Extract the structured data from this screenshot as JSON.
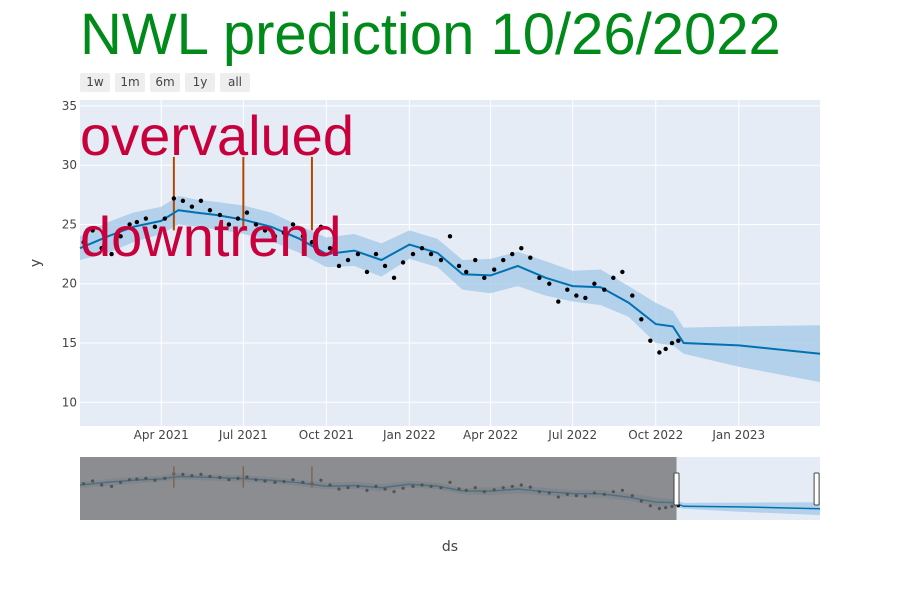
{
  "title": "NWL prediction 10/26/2022",
  "colors": {
    "title": "#008a1a",
    "annotation": "#c8003c",
    "forecast": "#0072b2",
    "band": "#a8cbe8",
    "actual": "#000000",
    "changepoint": "#b34700",
    "plot_bg": "#e5ecf6"
  },
  "range_selector": [
    {
      "label": "1w"
    },
    {
      "label": "1m"
    },
    {
      "label": "6m"
    },
    {
      "label": "1y"
    },
    {
      "label": "all"
    }
  ],
  "annotations": [
    "overvalued",
    "downtrend"
  ],
  "chart_data": {
    "type": "line",
    "xlabel": "ds",
    "ylabel": "y",
    "xlim": [
      "2021-01-01",
      "2023-04-01"
    ],
    "ylim": [
      8,
      35.5
    ],
    "x_ticks": [
      "Apr 2021",
      "Jul 2021",
      "Oct 2021",
      "Jan 2022",
      "Apr 2022",
      "Jul 2022",
      "Oct 2022",
      "Jan 2023"
    ],
    "x_tick_dates": [
      "2021-04-01",
      "2021-07-01",
      "2021-10-01",
      "2022-01-01",
      "2022-04-01",
      "2022-07-01",
      "2022-10-01",
      "2023-01-01"
    ],
    "y_ticks": [
      10,
      15,
      20,
      25,
      30,
      35
    ],
    "grid": true,
    "series": [
      {
        "kind": "forecast",
        "x": [
          "2021-01-01",
          "2021-02-01",
          "2021-03-01",
          "2021-04-01",
          "2021-04-20",
          "2021-05-10",
          "2021-06-01",
          "2021-07-01",
          "2021-08-01",
          "2021-09-01",
          "2021-10-01",
          "2021-11-01",
          "2021-12-01",
          "2022-01-01",
          "2022-02-01",
          "2022-03-01",
          "2022-04-01",
          "2022-05-01",
          "2022-06-01",
          "2022-07-01",
          "2022-08-01",
          "2022-09-01",
          "2022-10-01",
          "2022-10-20",
          "2022-11-01",
          "2023-01-01",
          "2023-04-01"
        ],
        "y": [
          23.0,
          24.0,
          24.8,
          25.3,
          26.2,
          26.0,
          25.8,
          25.4,
          24.8,
          23.8,
          22.5,
          22.8,
          22.0,
          23.3,
          22.6,
          20.8,
          20.7,
          21.5,
          20.5,
          19.8,
          19.7,
          18.4,
          16.6,
          16.4,
          15.0,
          14.8,
          14.1
        ],
        "lower": [
          22.0,
          22.6,
          23.5,
          24.2,
          25.0,
          24.8,
          24.6,
          24.2,
          23.6,
          22.6,
          21.4,
          21.5,
          20.6,
          22.1,
          21.4,
          19.5,
          19.2,
          19.8,
          19.0,
          18.5,
          18.2,
          17.2,
          15.0,
          14.8,
          14.1,
          13.0,
          11.7
        ],
        "upper": [
          24.0,
          25.2,
          26.0,
          26.5,
          27.4,
          27.1,
          26.9,
          26.6,
          26.0,
          24.9,
          23.9,
          24.2,
          23.4,
          24.5,
          23.8,
          22.0,
          22.1,
          22.7,
          21.9,
          21.1,
          21.2,
          19.8,
          18.4,
          17.7,
          16.3,
          16.4,
          16.5
        ]
      },
      {
        "kind": "actual",
        "x": [
          "2021-01-05",
          "2021-01-15",
          "2021-01-25",
          "2021-02-05",
          "2021-02-15",
          "2021-02-25",
          "2021-03-05",
          "2021-03-15",
          "2021-03-25",
          "2021-04-05",
          "2021-04-15",
          "2021-04-25",
          "2021-05-05",
          "2021-05-15",
          "2021-05-25",
          "2021-06-05",
          "2021-06-15",
          "2021-06-25",
          "2021-07-05",
          "2021-07-15",
          "2021-07-25",
          "2021-08-05",
          "2021-08-15",
          "2021-08-25",
          "2021-09-05",
          "2021-09-15",
          "2021-09-25",
          "2021-10-05",
          "2021-10-15",
          "2021-10-25",
          "2021-11-05",
          "2021-11-15",
          "2021-11-25",
          "2021-12-05",
          "2021-12-15",
          "2021-12-25",
          "2022-01-05",
          "2022-01-15",
          "2022-01-25",
          "2022-02-05",
          "2022-02-15",
          "2022-02-25",
          "2022-03-05",
          "2022-03-15",
          "2022-03-25",
          "2022-04-05",
          "2022-04-15",
          "2022-04-25",
          "2022-05-05",
          "2022-05-15",
          "2022-05-25",
          "2022-06-05",
          "2022-06-15",
          "2022-06-25",
          "2022-07-05",
          "2022-07-15",
          "2022-07-25",
          "2022-08-05",
          "2022-08-15",
          "2022-08-25",
          "2022-09-05",
          "2022-09-15",
          "2022-09-25",
          "2022-10-05",
          "2022-10-12",
          "2022-10-19",
          "2022-10-26"
        ],
        "y": [
          23.5,
          24.5,
          23.0,
          22.5,
          24.0,
          25.0,
          25.2,
          25.5,
          24.8,
          25.5,
          27.2,
          27.0,
          26.5,
          27.0,
          26.2,
          25.8,
          25.0,
          25.5,
          26.0,
          25.0,
          24.5,
          24.0,
          24.3,
          25.0,
          24.0,
          23.5,
          24.8,
          23.0,
          21.5,
          22.0,
          22.5,
          21.0,
          22.5,
          21.5,
          20.5,
          21.8,
          22.5,
          23.0,
          22.5,
          22.0,
          24.0,
          21.5,
          21.0,
          22.0,
          20.5,
          21.2,
          22.0,
          22.5,
          23.0,
          22.2,
          20.5,
          20.0,
          18.5,
          19.5,
          19.0,
          18.8,
          20.0,
          19.5,
          20.5,
          21.0,
          19.0,
          17.0,
          15.2,
          14.2,
          14.5,
          15.0,
          15.2
        ]
      }
    ],
    "changepoints": [
      "2021-04-15",
      "2021-07-01",
      "2021-09-15"
    ],
    "rangeslider": {
      "selected_from": "2022-10-24",
      "selected_to": "2023-03-31"
    }
  }
}
